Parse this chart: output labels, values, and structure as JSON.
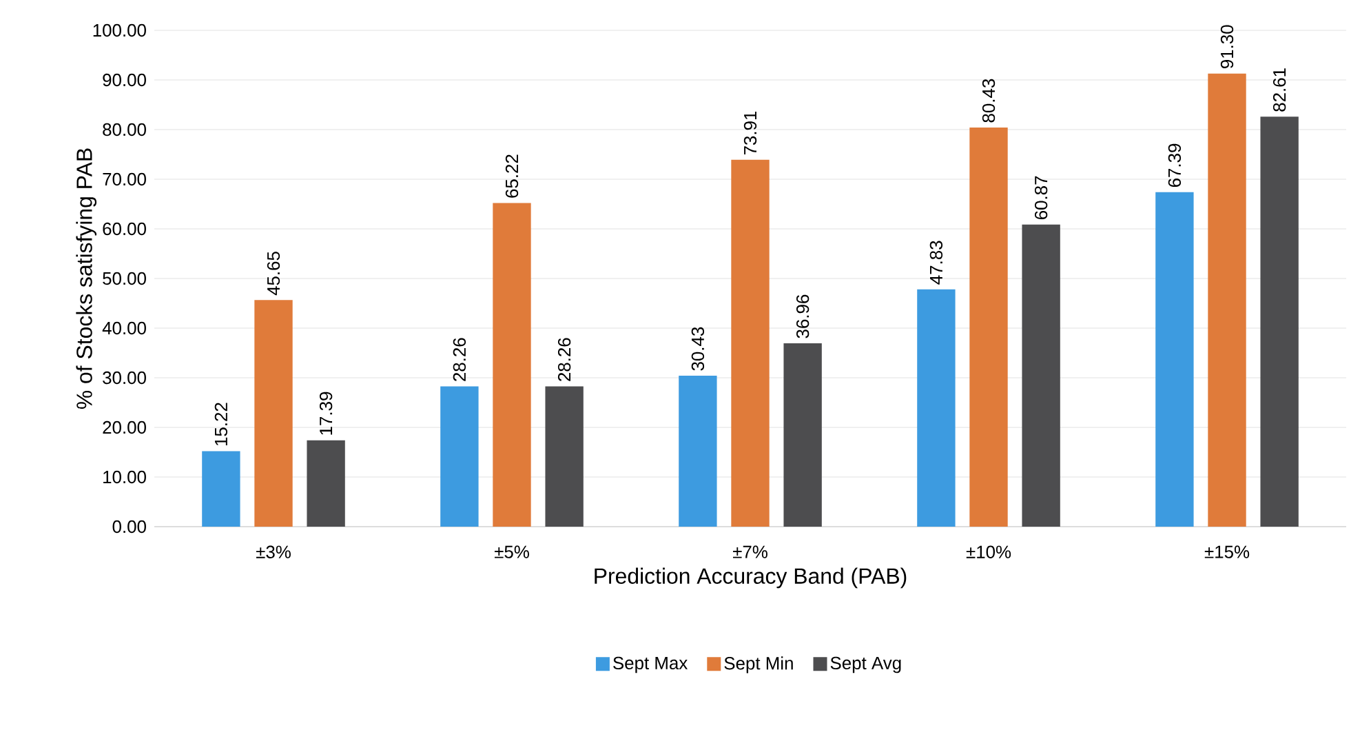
{
  "chart_data": {
    "type": "bar",
    "xlabel": "Prediction Accuracy Band (PAB)",
    "ylabel": "% of Stocks satisfying PAB",
    "categories": [
      "±3%",
      "±5%",
      "±7%",
      "±10%",
      "±15%"
    ],
    "series": [
      {
        "name": "Sept Max",
        "color": "#3d9be0",
        "values": [
          15.22,
          28.26,
          30.43,
          47.83,
          67.39
        ],
        "value_labels": [
          "15.22",
          "28.26",
          "30.43",
          "47.83",
          "67.39"
        ]
      },
      {
        "name": "Sept Min",
        "color": "#e07b3a",
        "values": [
          45.65,
          65.22,
          73.91,
          80.43,
          91.3
        ],
        "value_labels": [
          "45.65",
          "65.22",
          "73.91",
          "80.43",
          "91.30"
        ]
      },
      {
        "name": "Sept Avg",
        "color": "#4d4d4f",
        "values": [
          17.39,
          28.26,
          36.96,
          60.87,
          82.61
        ],
        "value_labels": [
          "17.39",
          "28.26",
          "36.96",
          "60.87",
          "82.61"
        ]
      }
    ],
    "ylim": [
      0,
      100
    ],
    "yticks": [
      {
        "value": 0,
        "label": "0.00"
      },
      {
        "value": 10,
        "label": "10.00"
      },
      {
        "value": 20,
        "label": "20.00"
      },
      {
        "value": 30,
        "label": "30.00"
      },
      {
        "value": 40,
        "label": "40.00"
      },
      {
        "value": 50,
        "label": "50.00"
      },
      {
        "value": 60,
        "label": "60.00"
      },
      {
        "value": 70,
        "label": "70.00"
      },
      {
        "value": 80,
        "label": "80.00"
      },
      {
        "value": 90,
        "label": "90.00"
      },
      {
        "value": 100,
        "label": "100.00"
      }
    ],
    "grid": "y",
    "legend": "bottom"
  }
}
